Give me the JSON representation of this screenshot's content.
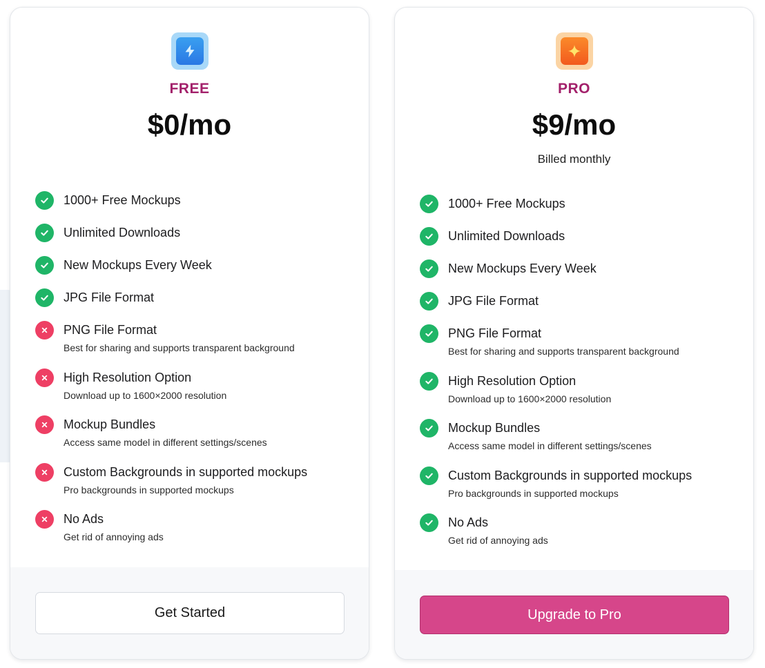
{
  "plans": [
    {
      "key": "free",
      "name": "FREE",
      "price": "$0/mo",
      "billing": "",
      "icon": "lightning-icon",
      "features": [
        {
          "title": "1000+ Free Mockups",
          "subtitle": "",
          "included": true
        },
        {
          "title": "Unlimited Downloads",
          "subtitle": "",
          "included": true
        },
        {
          "title": "New Mockups Every Week",
          "subtitle": "",
          "included": true
        },
        {
          "title": "JPG File Format",
          "subtitle": "",
          "included": true
        },
        {
          "title": "PNG File Format",
          "subtitle": "Best for sharing and supports transparent background",
          "included": false
        },
        {
          "title": "High Resolution Option",
          "subtitle": "Download up to 1600×2000 resolution",
          "included": false
        },
        {
          "title": "Mockup Bundles",
          "subtitle": "Access same model in different settings/scenes",
          "included": false
        },
        {
          "title": "Custom Backgrounds in supported mockups",
          "subtitle": "Pro backgrounds in supported mockups",
          "included": false
        },
        {
          "title": "No Ads",
          "subtitle": "Get rid of annoying ads",
          "included": false
        }
      ],
      "cta": "Get Started"
    },
    {
      "key": "pro",
      "name": "PRO",
      "price": "$9/mo",
      "billing": "Billed monthly",
      "icon": "sparkle-icon",
      "features": [
        {
          "title": "1000+ Free Mockups",
          "subtitle": "",
          "included": true
        },
        {
          "title": "Unlimited Downloads",
          "subtitle": "",
          "included": true
        },
        {
          "title": "New Mockups Every Week",
          "subtitle": "",
          "included": true
        },
        {
          "title": "JPG File Format",
          "subtitle": "",
          "included": true
        },
        {
          "title": "PNG File Format",
          "subtitle": "Best for sharing and supports transparent background",
          "included": true
        },
        {
          "title": "High Resolution Option",
          "subtitle": "Download up to 1600×2000 resolution",
          "included": true
        },
        {
          "title": "Mockup Bundles",
          "subtitle": "Access same model in different settings/scenes",
          "included": true
        },
        {
          "title": "Custom Backgrounds in supported mockups",
          "subtitle": "Pro backgrounds in supported mockups",
          "included": true
        },
        {
          "title": "No Ads",
          "subtitle": "Get rid of annoying ads",
          "included": true
        }
      ],
      "cta": "Upgrade to Pro"
    }
  ],
  "colors": {
    "plan_name": "#a3216b",
    "check": "#1fb567",
    "cross": "#ee3f64",
    "primary_button": "#d6468a"
  }
}
